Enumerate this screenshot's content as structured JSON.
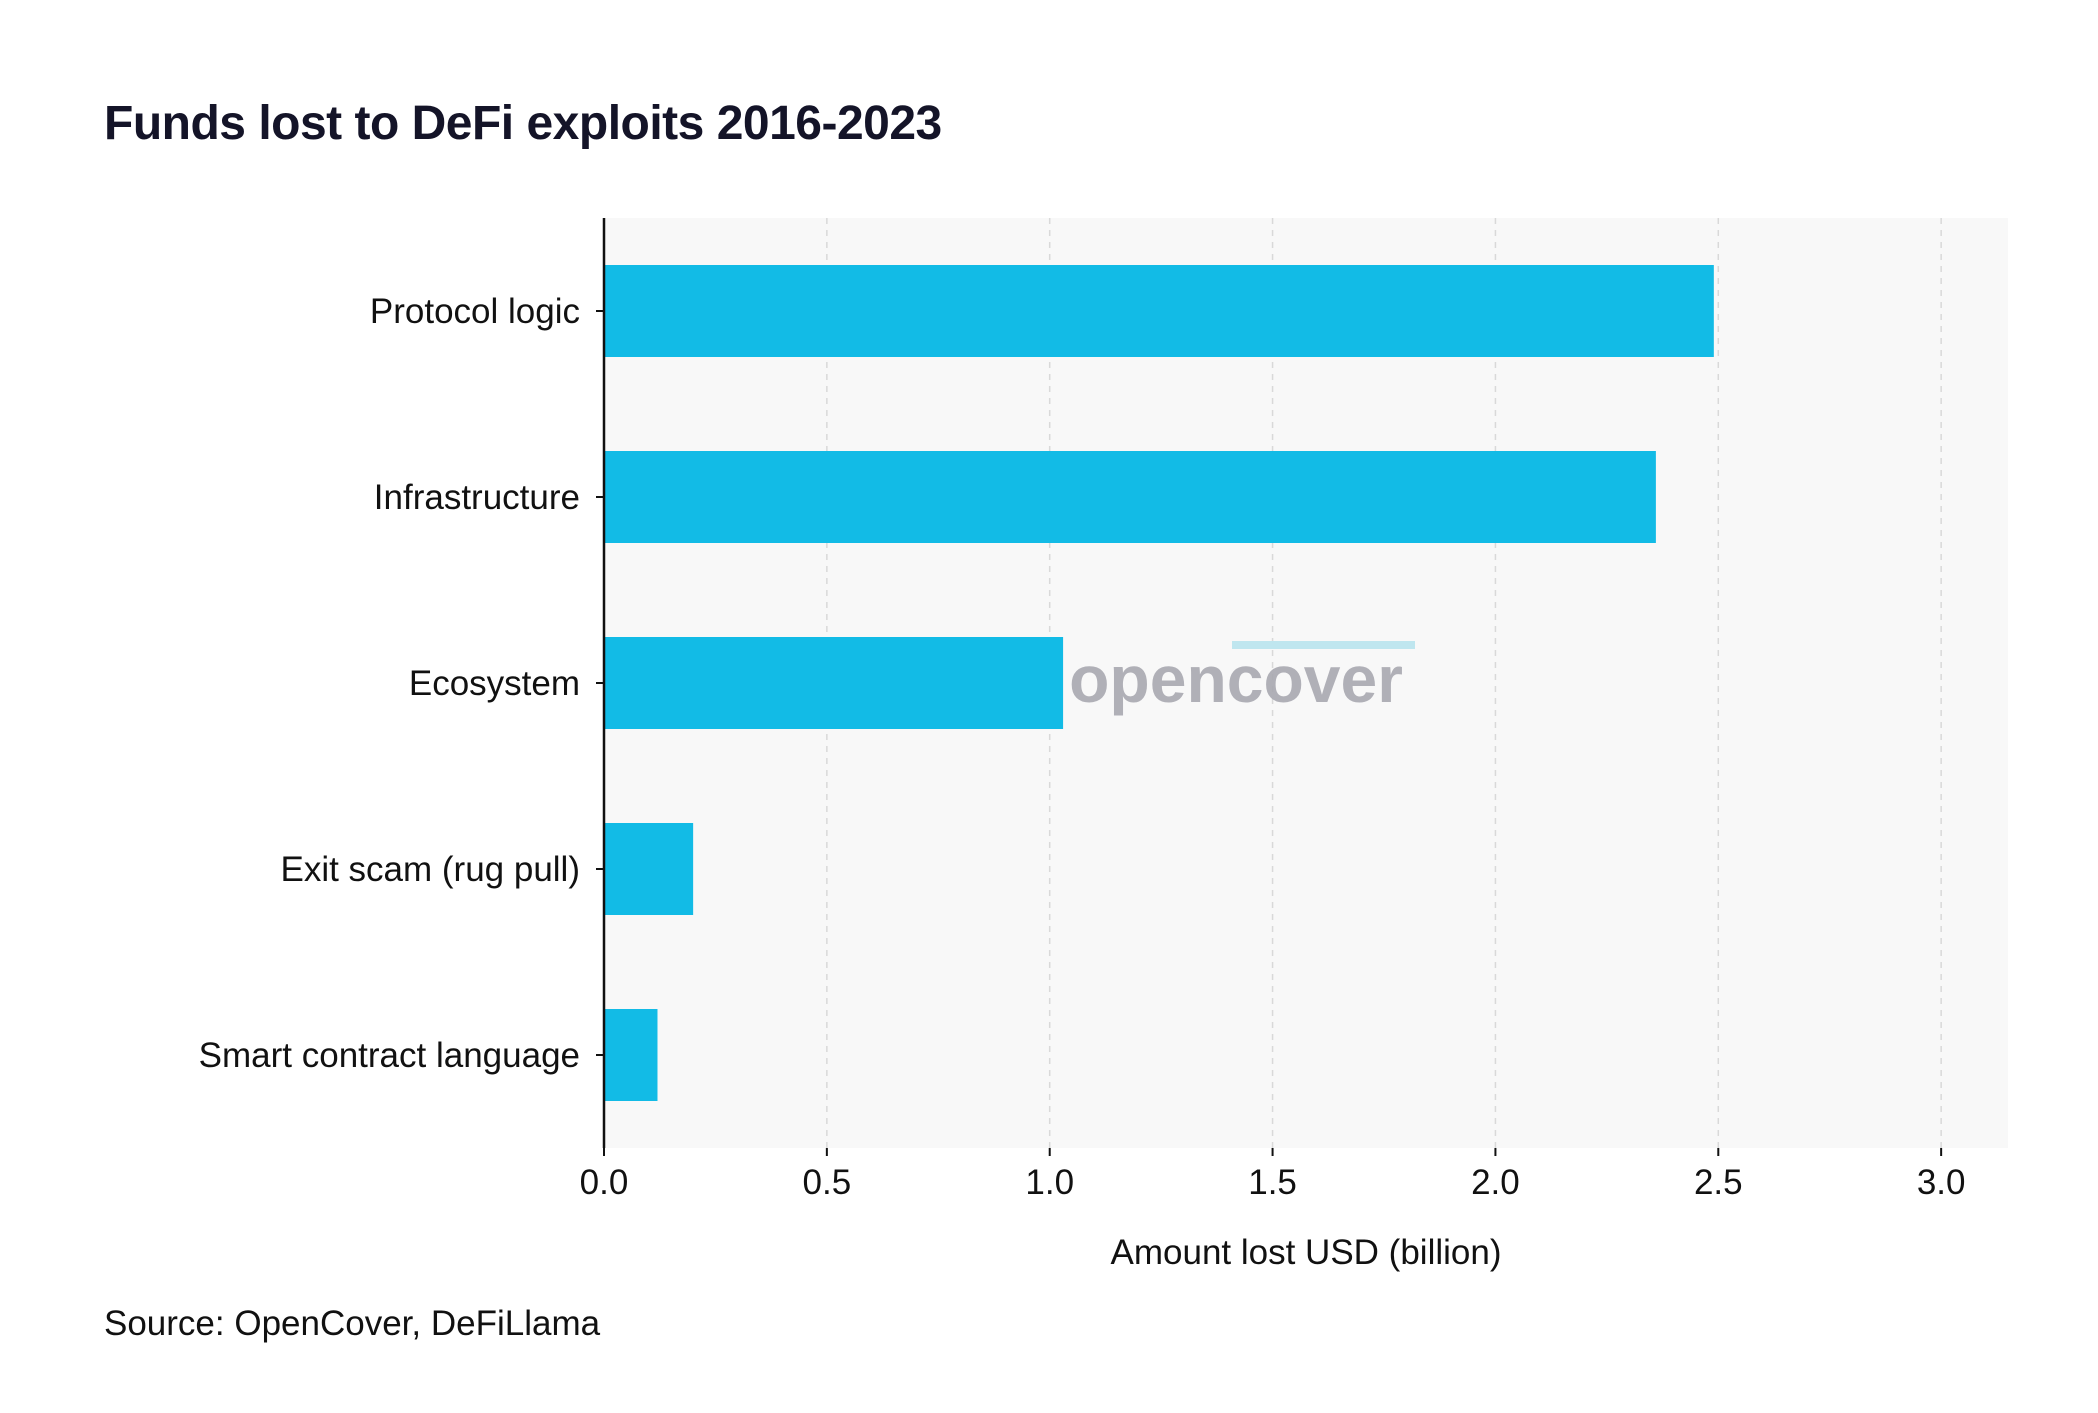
{
  "header": {
    "title": "Funds lost to DeFi exploits 2016-2023"
  },
  "footer": {
    "source": "Source: OpenCover, DeFiLlama"
  },
  "watermark": {
    "text": "opencover",
    "text_color": "#a9a9b1",
    "accent_color": "#bfe6ef"
  },
  "colors": {
    "bar": "#12bbe6",
    "plot_background": "#f8f8f8",
    "grid": "#d9d9d9",
    "axis": "#111111"
  },
  "chart_data": {
    "type": "bar",
    "orientation": "horizontal",
    "title": "Funds lost to DeFi exploits 2016-2023",
    "xlabel": "Amount lost USD (billion)",
    "ylabel": "",
    "categories": [
      "Protocol logic",
      "Infrastructure",
      "Ecosystem",
      "Exit scam (rug pull)",
      "Smart contract language"
    ],
    "values": [
      2.49,
      2.36,
      1.03,
      0.2,
      0.12
    ],
    "xlim": [
      0,
      3.15
    ],
    "xticks": [
      0.0,
      0.5,
      1.0,
      1.5,
      2.0,
      2.5,
      3.0
    ],
    "xtick_labels": [
      "0.0",
      "0.5",
      "1.0",
      "1.5",
      "2.0",
      "2.5",
      "3.0"
    ],
    "grid": "vertical dashed",
    "legend": "none"
  }
}
